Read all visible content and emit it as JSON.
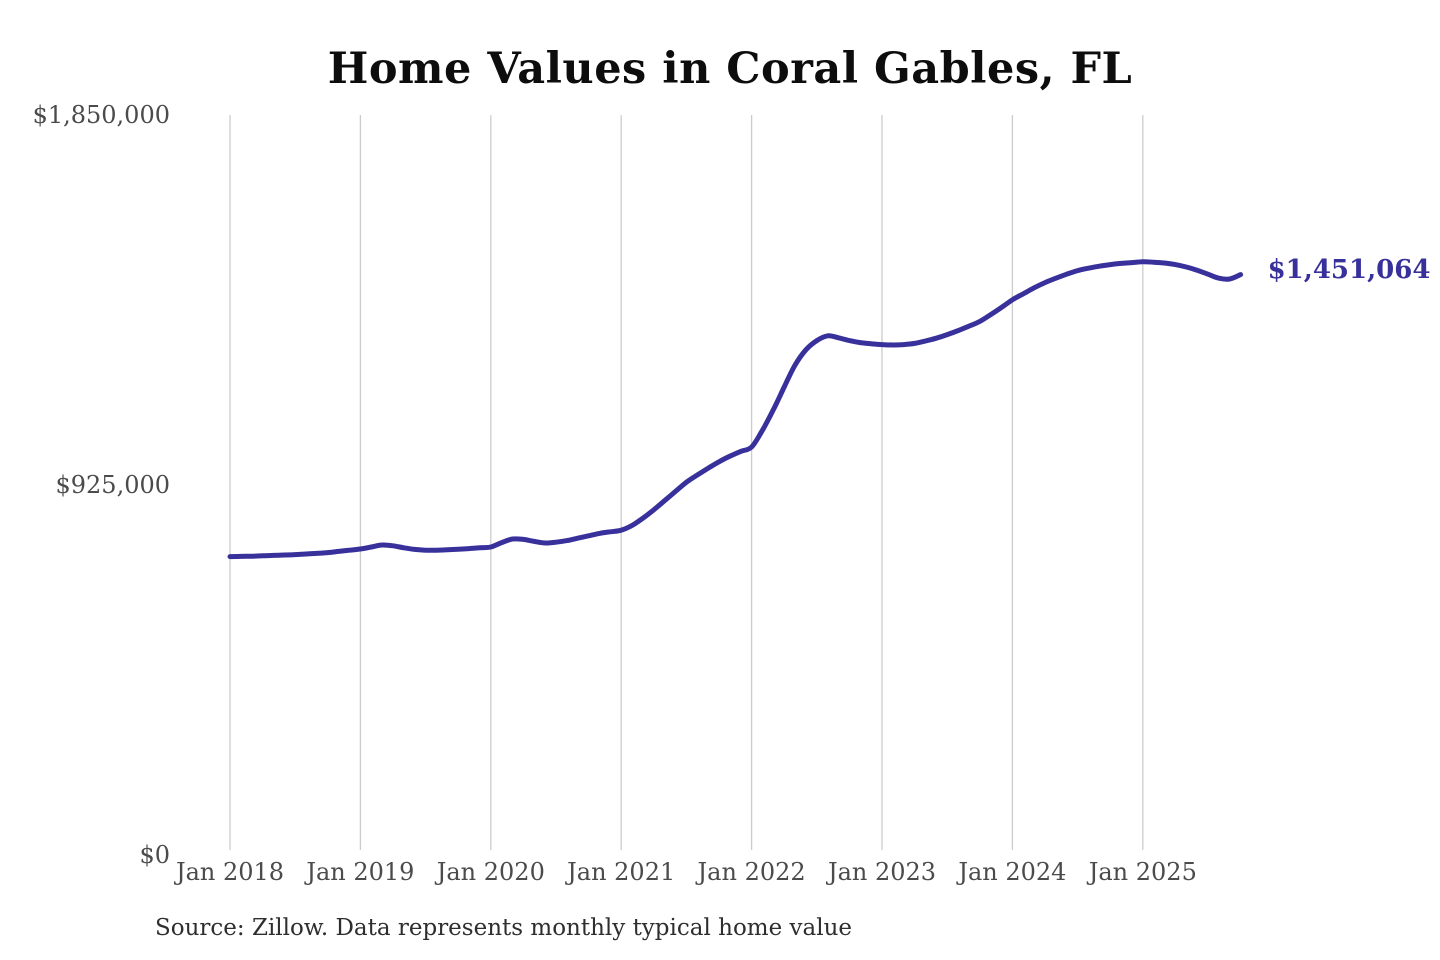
{
  "title": "Home Values in Coral Gables, FL",
  "source_note": "Source: Zillow. Data represents monthly typical home value",
  "latest_value_label": "$1,451,064",
  "colors": {
    "line": "#39319b",
    "latest_label_text": "#39319b",
    "grid": "#cccccc",
    "axis_text": "#4b4b4b",
    "title_text": "#0d0d0d",
    "source_text": "#2e2e2e",
    "background": "#ffffff"
  },
  "chart_data": {
    "type": "line",
    "title": "Home Values in Coral Gables, FL",
    "xlabel": "",
    "ylabel": "",
    "legend": "none",
    "grid": "vertical-only",
    "ylim": [
      0,
      1850000
    ],
    "y_ticks": [
      {
        "value": 0,
        "label": "$0"
      },
      {
        "value": 925000,
        "label": "$925,000"
      },
      {
        "value": 1850000,
        "label": "$1,850,000"
      }
    ],
    "x_ticks": [
      {
        "month_index": 0,
        "label": "Jan 2018"
      },
      {
        "month_index": 12,
        "label": "Jan 2019"
      },
      {
        "month_index": 24,
        "label": "Jan 2020"
      },
      {
        "month_index": 36,
        "label": "Jan 2021"
      },
      {
        "month_index": 48,
        "label": "Jan 2022"
      },
      {
        "month_index": 60,
        "label": "Jan 2023"
      },
      {
        "month_index": 72,
        "label": "Jan 2024"
      },
      {
        "month_index": 84,
        "label": "Jan 2025"
      }
    ],
    "x_start_month": "2018-01",
    "x_end_month": "2025-10",
    "series": [
      {
        "name": "Monthly typical home value",
        "final_value": 1451064,
        "values": [
          746000,
          746500,
          747000,
          748000,
          749000,
          750000,
          751000,
          752500,
          754000,
          756000,
          759000,
          762000,
          765000,
          770000,
          775000,
          773000,
          768000,
          764000,
          762000,
          762000,
          763000,
          764500,
          766000,
          768000,
          770000,
          781000,
          790000,
          789000,
          784000,
          780000,
          782000,
          786000,
          792000,
          798000,
          804000,
          808000,
          812000,
          824000,
          842000,
          863000,
          886000,
          909000,
          932000,
          950000,
          967000,
          983000,
          997000,
          1009000,
          1020000,
          1062000,
          1113000,
          1170000,
          1225000,
          1263000,
          1286000,
          1298000,
          1293000,
          1286000,
          1281000,
          1278000,
          1276000,
          1275000,
          1276000,
          1279000,
          1285000,
          1292000,
          1301000,
          1311000,
          1322000,
          1334000,
          1351000,
          1369000,
          1388000,
          1403000,
          1418000,
          1431000,
          1442000,
          1452000,
          1461000,
          1467000,
          1472000,
          1476000,
          1479000,
          1481000,
          1483000,
          1482000,
          1480000,
          1476000,
          1470000,
          1462000,
          1452000,
          1442000,
          1440000,
          1451064
        ]
      }
    ]
  }
}
